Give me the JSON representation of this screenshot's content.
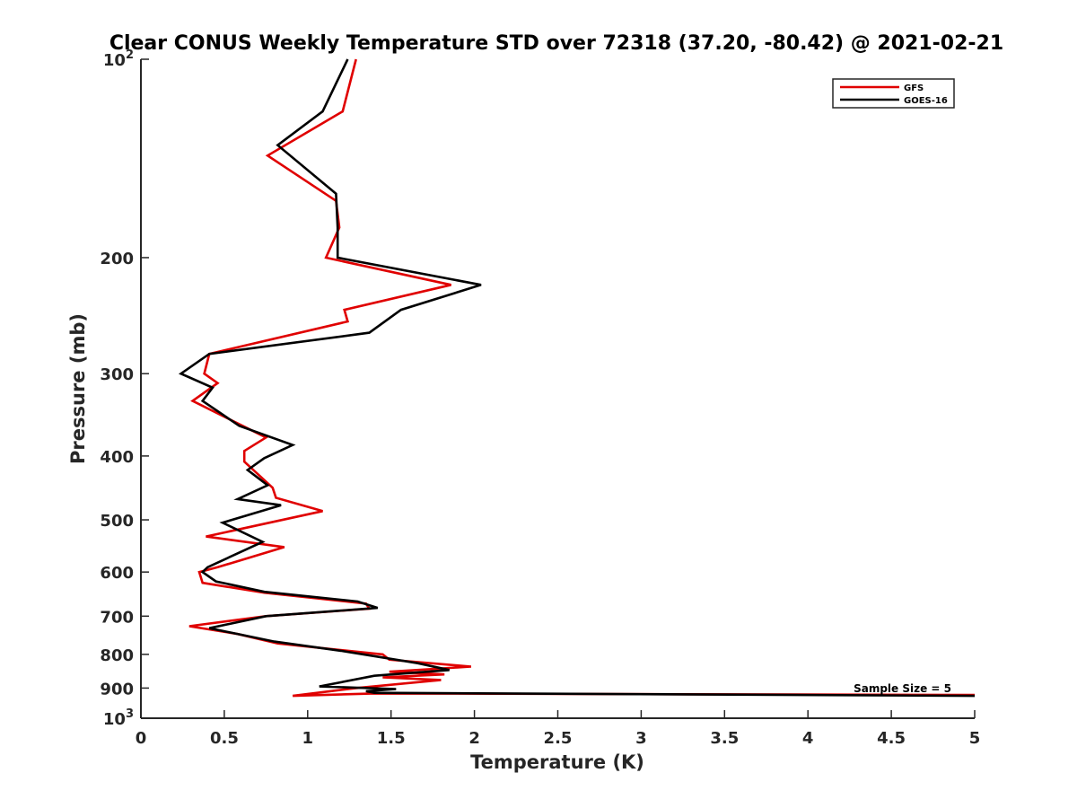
{
  "chart_data": {
    "type": "line",
    "title": "Clear CONUS Weekly Temperature STD over 72318 (37.20, -80.42) @ 2021-02-21",
    "xlabel": "Temperature (K)",
    "ylabel": "Pressure (mb)",
    "xlim": [
      0,
      5
    ],
    "ylim": [
      100,
      1000
    ],
    "y_scale": "log",
    "y_reversed": true,
    "x_ticks": [
      "0",
      "0.5",
      "1",
      "1.5",
      "2",
      "2.5",
      "3",
      "3.5",
      "4",
      "4.5",
      "5"
    ],
    "y_ticks": [
      {
        "value": 100,
        "base": "10",
        "exp": "2"
      },
      {
        "value": 200,
        "label": "200"
      },
      {
        "value": 300,
        "label": "300"
      },
      {
        "value": 400,
        "label": "400"
      },
      {
        "value": 500,
        "label": "500"
      },
      {
        "value": 600,
        "label": "600"
      },
      {
        "value": 700,
        "label": "700"
      },
      {
        "value": 800,
        "label": "800"
      },
      {
        "value": 900,
        "label": "900"
      },
      {
        "value": 1000,
        "base": "10",
        "exp": "3"
      }
    ],
    "grid": false,
    "legend_position": "top-right",
    "annotation": "Sample Size = 5",
    "series": [
      {
        "name": "GFS",
        "color": "#e00000",
        "points": [
          [
            1.29,
            100
          ],
          [
            1.21,
            120
          ],
          [
            0.76,
            140
          ],
          [
            1.17,
            164
          ],
          [
            1.19,
            180
          ],
          [
            1.11,
            200
          ],
          [
            1.86,
            220
          ],
          [
            1.22,
            240
          ],
          [
            1.24,
            250
          ],
          [
            0.41,
            280
          ],
          [
            0.38,
            300
          ],
          [
            0.46,
            310
          ],
          [
            0.31,
            330
          ],
          [
            0.75,
            375
          ],
          [
            0.62,
            393
          ],
          [
            0.62,
            408
          ],
          [
            0.79,
            447
          ],
          [
            0.81,
            463
          ],
          [
            1.09,
            485
          ],
          [
            0.39,
            530
          ],
          [
            0.86,
            550
          ],
          [
            0.46,
            590
          ],
          [
            0.35,
            600
          ],
          [
            0.37,
            623
          ],
          [
            0.74,
            645
          ],
          [
            1.35,
            670
          ],
          [
            1.37,
            682
          ],
          [
            0.75,
            700
          ],
          [
            0.29,
            725
          ],
          [
            0.58,
            745
          ],
          [
            0.82,
            770
          ],
          [
            1.45,
            800
          ],
          [
            1.49,
            815
          ],
          [
            1.98,
            835
          ],
          [
            1.49,
            850
          ],
          [
            1.82,
            858
          ],
          [
            1.45,
            867
          ],
          [
            1.8,
            875
          ],
          [
            1.29,
            900
          ],
          [
            0.91,
            925
          ],
          [
            1.4,
            917
          ],
          [
            5.0,
            922
          ]
        ]
      },
      {
        "name": "GOES-16",
        "color": "#000000",
        "points": [
          [
            1.24,
            100
          ],
          [
            1.09,
            120
          ],
          [
            0.82,
            135
          ],
          [
            1.17,
            160
          ],
          [
            1.18,
            180
          ],
          [
            1.18,
            200
          ],
          [
            2.04,
            220
          ],
          [
            1.56,
            240
          ],
          [
            1.37,
            260
          ],
          [
            0.41,
            280
          ],
          [
            0.24,
            300
          ],
          [
            0.43,
            315
          ],
          [
            0.37,
            330
          ],
          [
            0.59,
            360
          ],
          [
            0.91,
            385
          ],
          [
            0.74,
            403
          ],
          [
            0.64,
            420
          ],
          [
            0.76,
            443
          ],
          [
            0.58,
            465
          ],
          [
            0.84,
            475
          ],
          [
            0.49,
            505
          ],
          [
            0.73,
            540
          ],
          [
            0.4,
            590
          ],
          [
            0.37,
            600
          ],
          [
            0.45,
            620
          ],
          [
            0.74,
            643
          ],
          [
            1.3,
            665
          ],
          [
            1.42,
            680
          ],
          [
            0.75,
            700
          ],
          [
            0.41,
            730
          ],
          [
            0.8,
            765
          ],
          [
            1.2,
            790
          ],
          [
            1.66,
            825
          ],
          [
            1.85,
            845
          ],
          [
            1.4,
            862
          ],
          [
            1.07,
            895
          ],
          [
            1.53,
            903
          ],
          [
            1.35,
            910
          ],
          [
            1.4,
            915
          ],
          [
            5.0,
            925
          ]
        ]
      }
    ]
  }
}
